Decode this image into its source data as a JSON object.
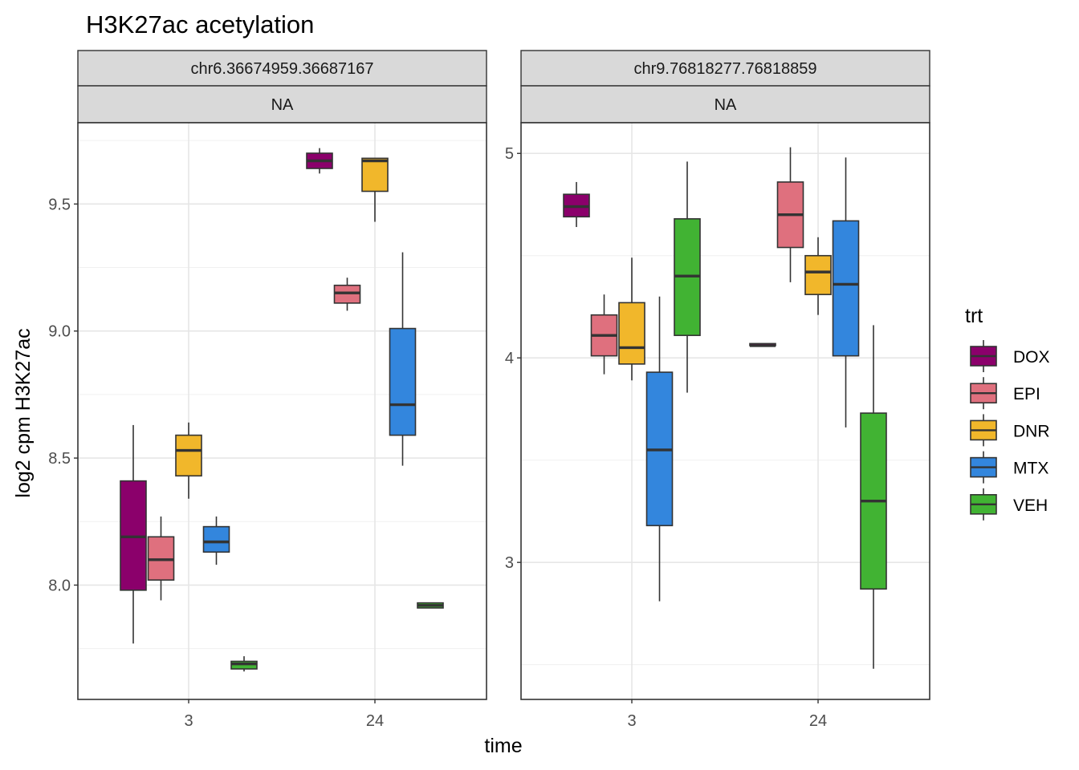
{
  "chart_data": {
    "type": "boxplot",
    "title": "H3K27ac acetylation",
    "xlabel": "time",
    "ylabel": "log2 cpm H3K27ac",
    "grid": true,
    "legend": {
      "title": "trt",
      "position": "right",
      "entries": [
        {
          "name": "DOX",
          "color": "#8B006B"
        },
        {
          "name": "EPI",
          "color": "#DF707E"
        },
        {
          "name": "DNR",
          "color": "#F1B72B"
        },
        {
          "name": "MTX",
          "color": "#3386DD"
        },
        {
          "name": "VEH",
          "color": "#41B333"
        }
      ]
    },
    "categories": [
      "3",
      "24"
    ],
    "panels": [
      {
        "strip_top": "chr6.36674959.36687167",
        "strip_bottom": "NA",
        "ylim": [
          7.55,
          9.82
        ],
        "yticks": [
          8.0,
          8.5,
          9.0,
          9.5
        ],
        "ytick_labels": [
          "8.0",
          "8.5",
          "9.0",
          "9.5"
        ],
        "boxes": [
          {
            "time": "3",
            "trt": "DOX",
            "min": 7.77,
            "q1": 7.98,
            "median": 8.19,
            "q3": 8.41,
            "max": 8.63
          },
          {
            "time": "3",
            "trt": "EPI",
            "min": 7.94,
            "q1": 8.02,
            "median": 8.1,
            "q3": 8.19,
            "max": 8.27
          },
          {
            "time": "3",
            "trt": "DNR",
            "min": 8.34,
            "q1": 8.43,
            "median": 8.53,
            "q3": 8.59,
            "max": 8.64
          },
          {
            "time": "3",
            "trt": "MTX",
            "min": 8.08,
            "q1": 8.13,
            "median": 8.17,
            "q3": 8.23,
            "max": 8.27
          },
          {
            "time": "3",
            "trt": "VEH",
            "min": 7.66,
            "q1": 7.67,
            "median": 7.69,
            "q3": 7.7,
            "max": 7.72
          },
          {
            "time": "24",
            "trt": "DOX",
            "min": 9.62,
            "q1": 9.64,
            "median": 9.67,
            "q3": 9.7,
            "max": 9.72
          },
          {
            "time": "24",
            "trt": "EPI",
            "min": 9.08,
            "q1": 9.11,
            "median": 9.15,
            "q3": 9.18,
            "max": 9.21
          },
          {
            "time": "24",
            "trt": "DNR",
            "min": 9.43,
            "q1": 9.55,
            "median": 9.67,
            "q3": 9.68,
            "max": 9.68
          },
          {
            "time": "24",
            "trt": "MTX",
            "min": 8.47,
            "q1": 8.59,
            "median": 8.71,
            "q3": 9.01,
            "max": 9.31
          },
          {
            "time": "24",
            "trt": "VEH",
            "min": 7.91,
            "q1": 7.91,
            "median": 7.92,
            "q3": 7.93,
            "max": 7.93
          }
        ]
      },
      {
        "strip_top": "chr9.76818277.76818859",
        "strip_bottom": "NA",
        "ylim": [
          2.33,
          5.15
        ],
        "yticks": [
          3,
          4,
          5
        ],
        "ytick_labels": [
          "3",
          "4",
          "5"
        ],
        "boxes": [
          {
            "time": "3",
            "trt": "DOX",
            "min": 4.64,
            "q1": 4.69,
            "median": 4.74,
            "q3": 4.8,
            "max": 4.86
          },
          {
            "time": "3",
            "trt": "EPI",
            "min": 3.92,
            "q1": 4.01,
            "median": 4.11,
            "q3": 4.21,
            "max": 4.31
          },
          {
            "time": "3",
            "trt": "DNR",
            "min": 3.89,
            "q1": 3.97,
            "median": 4.05,
            "q3": 4.27,
            "max": 4.49
          },
          {
            "time": "3",
            "trt": "MTX",
            "min": 2.81,
            "q1": 3.18,
            "median": 3.55,
            "q3": 3.93,
            "max": 4.3
          },
          {
            "time": "3",
            "trt": "VEH",
            "min": 3.83,
            "q1": 4.11,
            "median": 4.4,
            "q3": 4.68,
            "max": 4.96
          },
          {
            "time": "24",
            "trt": "DOX",
            "min": 4.06,
            "q1": 4.06,
            "median": 4.06,
            "q3": 4.07,
            "max": 4.07
          },
          {
            "time": "24",
            "trt": "EPI",
            "min": 4.37,
            "q1": 4.54,
            "median": 4.7,
            "q3": 4.86,
            "max": 5.03
          },
          {
            "time": "24",
            "trt": "DNR",
            "min": 4.21,
            "q1": 4.31,
            "median": 4.42,
            "q3": 4.5,
            "max": 4.59
          },
          {
            "time": "24",
            "trt": "MTX",
            "min": 3.66,
            "q1": 4.01,
            "median": 4.36,
            "q3": 4.67,
            "max": 4.98
          },
          {
            "time": "24",
            "trt": "VEH",
            "min": 2.48,
            "q1": 2.87,
            "median": 3.3,
            "q3": 3.73,
            "max": 4.16
          }
        ]
      }
    ]
  }
}
